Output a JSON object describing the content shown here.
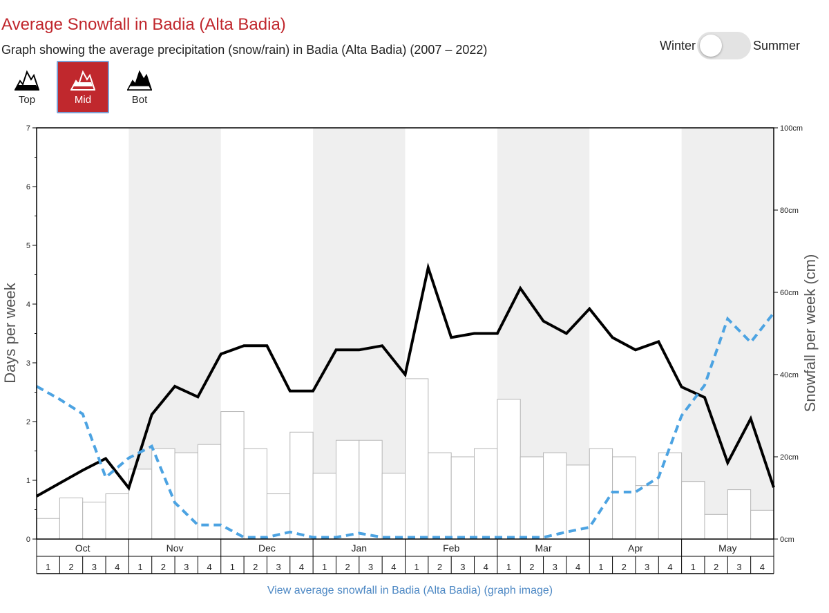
{
  "header": {
    "title": "Average Snowfall in Badia (Alta Badia)",
    "subtitle": "Graph showing the average precipitation (snow/rain) in Badia (Alta Badia) (2007 – 2022)"
  },
  "season_toggle": {
    "left_label": "Winter",
    "right_label": "Summer",
    "selected": "Winter"
  },
  "elevation_buttons": [
    {
      "label": "Top",
      "icon": "mountain-top-icon",
      "active": false
    },
    {
      "label": "Mid",
      "icon": "mountain-mid-icon",
      "active": true
    },
    {
      "label": "Bot",
      "icon": "mountain-bottom-icon",
      "active": false
    }
  ],
  "footer": {
    "link_text": "View average snowfall in Badia (Alta Badia) (graph image)"
  },
  "colors": {
    "title": "#c0262c",
    "active_button": "#c0282d",
    "snow_days_line": "#000000",
    "rain_days_line": "#4ca3e2",
    "band_shade": "#efefef",
    "link": "#4d88c4"
  },
  "chart_data": {
    "type": "bar",
    "xlabel": "",
    "ylabel": "Days per week",
    "y2label": "Snowfall per week (cm)",
    "ylim": [
      0,
      7
    ],
    "y2lim": [
      0,
      100
    ],
    "yticks": [
      "0",
      "1",
      "2",
      "3",
      "4",
      "5",
      "6",
      "7"
    ],
    "y2ticks": [
      "0cm",
      "20cm",
      "40cm",
      "60cm",
      "80cm",
      "100cm"
    ],
    "months": [
      "Oct",
      "Nov",
      "Dec",
      "Jan",
      "Feb",
      "Mar",
      "Apr",
      "May"
    ],
    "weeks": [
      "1",
      "2",
      "3",
      "4"
    ],
    "shaded_months": [
      "Nov",
      "Jan",
      "Mar",
      "May"
    ],
    "series": [
      {
        "kind": "bar",
        "axis": "right",
        "values": [
          5,
          10,
          9,
          11,
          17,
          22,
          21,
          23,
          31,
          22,
          11,
          26,
          16,
          24,
          24,
          16,
          39,
          21,
          20,
          22,
          34,
          20,
          21,
          18,
          22,
          20,
          13,
          21,
          14,
          6,
          12,
          7
        ]
      },
      {
        "kind": "line",
        "axis": "left",
        "style": "solid",
        "values": [
          0.73,
          0.95,
          1.17,
          1.37,
          0.87,
          2.12,
          2.6,
          2.42,
          3.15,
          3.29,
          3.29,
          2.52,
          2.52,
          3.22,
          3.22,
          3.29,
          2.8,
          4.62,
          3.43,
          3.5,
          3.5,
          4.27,
          3.71,
          3.5,
          3.92,
          3.43,
          3.22,
          3.36,
          2.59,
          2.41,
          1.3,
          2.05,
          0.88
        ]
      },
      {
        "kind": "line",
        "axis": "left",
        "style": "dashed",
        "values": [
          2.6,
          2.38,
          2.13,
          1.05,
          1.38,
          1.58,
          0.62,
          0.24,
          0.24,
          0.03,
          0.03,
          0.12,
          0.03,
          0.03,
          0.1,
          0.03,
          0.03,
          0.03,
          0.03,
          0.03,
          0.03,
          0.03,
          0.03,
          0.12,
          0.2,
          0.8,
          0.8,
          1.05,
          2.1,
          2.62,
          3.75,
          3.35,
          3.85
        ]
      }
    ]
  }
}
